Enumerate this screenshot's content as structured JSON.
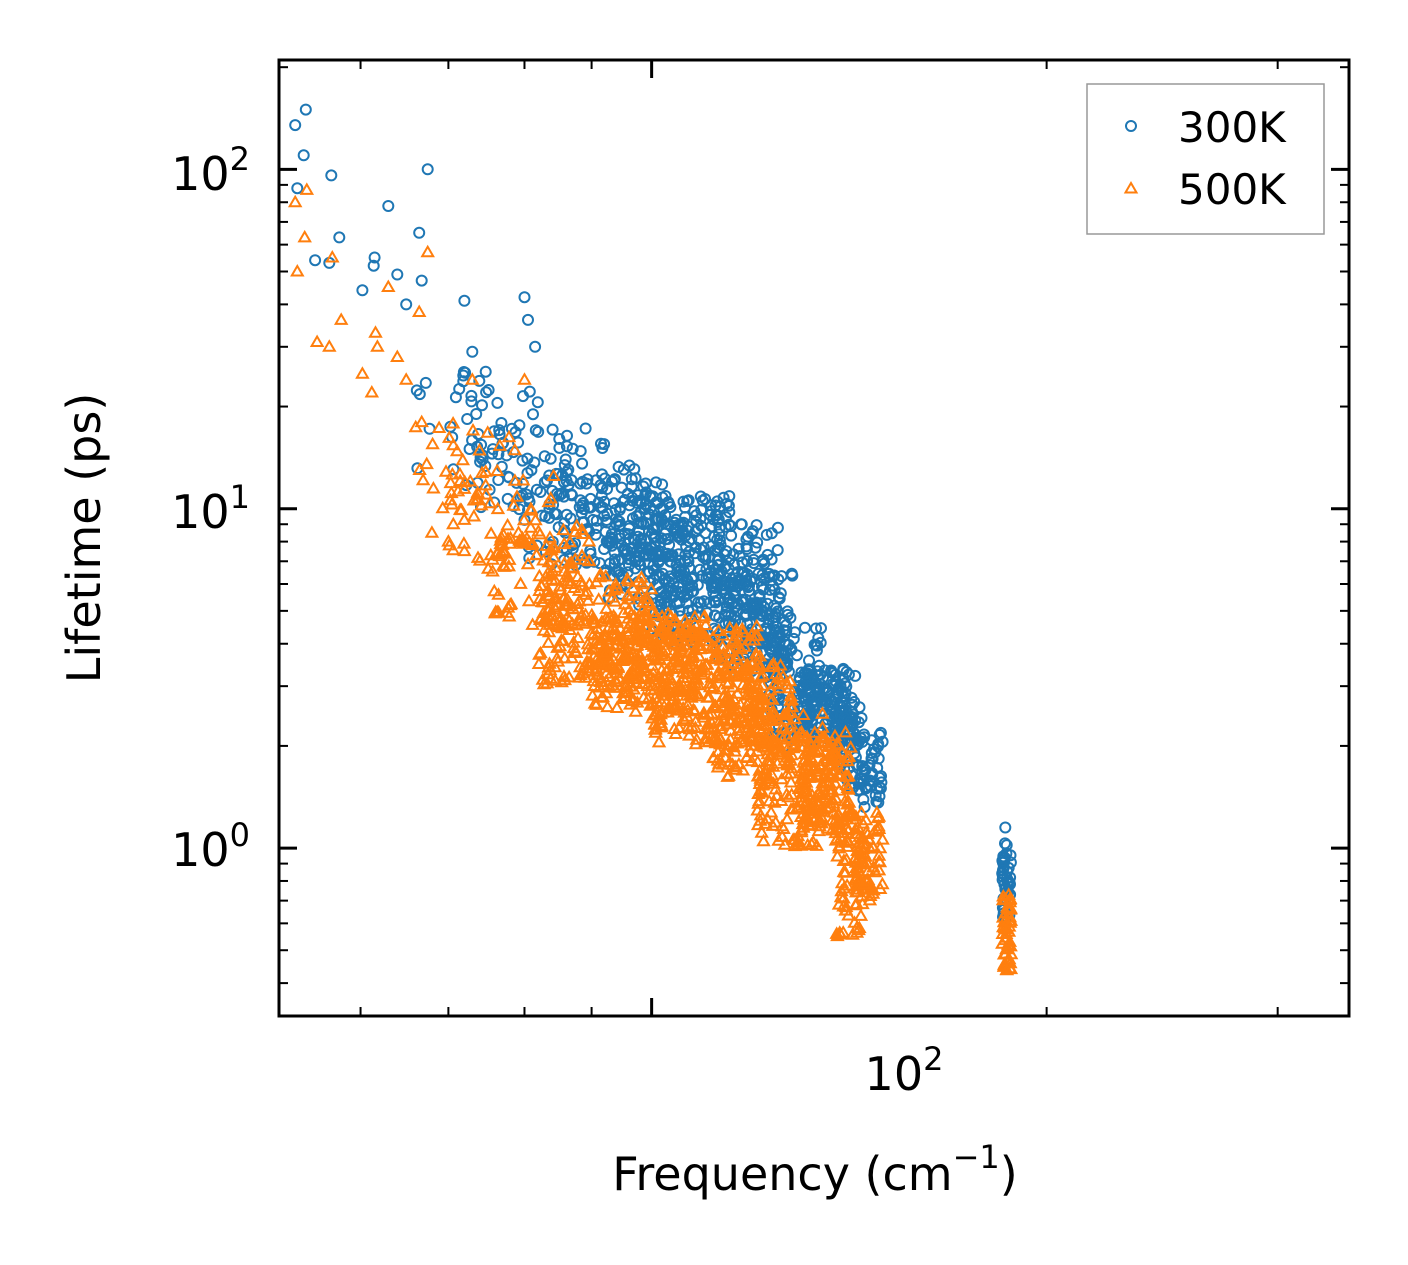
{
  "chart_data": {
    "type": "scatter",
    "xscale": "log",
    "yscale": "log",
    "xlim": [
      52,
      340
    ],
    "ylim": [
      0.32,
      210
    ],
    "xlabel_base": "Frequency (cm",
    "xlabel_sup": "−1",
    "xlabel_close": ")",
    "ylabel": "Lifetime (ps)",
    "x_major_ticks": [
      {
        "value": 100,
        "base": "10",
        "exp": "2"
      }
    ],
    "y_major_ticks": [
      {
        "value": 1,
        "base": "10",
        "exp": "0"
      },
      {
        "value": 10,
        "base": "10",
        "exp": "1"
      },
      {
        "value": 100,
        "base": "10",
        "exp": "2"
      }
    ],
    "legend_position": "top-right",
    "series": [
      {
        "name": "300K",
        "color": "#1f77b4",
        "marker": "circle",
        "anchors": [
          {
            "x": 53.5,
            "y": 135
          },
          {
            "x": 54.5,
            "y": 150
          },
          {
            "x": 54.3,
            "y": 110
          },
          {
            "x": 53.7,
            "y": 88
          },
          {
            "x": 57,
            "y": 96
          },
          {
            "x": 56.8,
            "y": 53
          },
          {
            "x": 55.4,
            "y": 54
          },
          {
            "x": 57.8,
            "y": 63
          },
          {
            "x": 60.2,
            "y": 44
          },
          {
            "x": 61.5,
            "y": 55
          },
          {
            "x": 61.4,
            "y": 52
          },
          {
            "x": 63,
            "y": 78
          },
          {
            "x": 64,
            "y": 49
          },
          {
            "x": 65,
            "y": 40
          },
          {
            "x": 66.5,
            "y": 65
          },
          {
            "x": 67.5,
            "y": 100
          },
          {
            "x": 66.8,
            "y": 47
          },
          {
            "x": 72,
            "y": 41
          },
          {
            "x": 73,
            "y": 29
          },
          {
            "x": 80,
            "y": 42
          },
          {
            "x": 80.5,
            "y": 36
          },
          {
            "x": 81.5,
            "y": 30
          },
          {
            "x": 92,
            "y": 15.5
          },
          {
            "x": 117,
            "y": 9
          },
          {
            "x": 123,
            "y": 6.3
          },
          {
            "x": 186,
            "y": 1.15
          },
          {
            "x": 187,
            "y": 0.8
          }
        ],
        "bands": [
          {
            "x": [
              66,
              82
            ],
            "y": [
              13,
              26
            ],
            "n": 40
          },
          {
            "x": [
              72,
              92
            ],
            "y": [
              9.5,
              18
            ],
            "n": 70
          },
          {
            "x": [
              80,
              102
            ],
            "y": [
              6.8,
              13.5
            ],
            "n": 160
          },
          {
            "x": [
              92,
              115
            ],
            "y": [
              5.2,
              11
            ],
            "n": 220
          },
          {
            "x": [
              100,
              125
            ],
            "y": [
              4,
              9
            ],
            "n": 220
          },
          {
            "x": [
              112,
              128
            ],
            "y": [
              3.2,
              6.5
            ],
            "n": 140
          },
          {
            "x": [
              122,
              135
            ],
            "y": [
              2,
              4.5
            ],
            "n": 130
          },
          {
            "x": [
              130,
              143
            ],
            "y": [
              2,
              3.4
            ],
            "n": 140
          },
          {
            "x": [
              138,
              145
            ],
            "y": [
              1.5,
              2.7
            ],
            "n": 60
          },
          {
            "x": [
              143,
              150
            ],
            "y": [
              1.3,
              2.2
            ],
            "n": 50
          },
          {
            "x": [
              185,
              188
            ],
            "y": [
              0.62,
              1.05
            ],
            "n": 40
          }
        ]
      },
      {
        "name": "500K",
        "color": "#ff7f0e",
        "marker": "triangle",
        "anchors": [
          {
            "x": 53.5,
            "y": 80
          },
          {
            "x": 53.7,
            "y": 50
          },
          {
            "x": 54.6,
            "y": 87
          },
          {
            "x": 54.4,
            "y": 63
          },
          {
            "x": 55.6,
            "y": 31
          },
          {
            "x": 56.8,
            "y": 30
          },
          {
            "x": 57.1,
            "y": 55
          },
          {
            "x": 58,
            "y": 36
          },
          {
            "x": 60.2,
            "y": 25
          },
          {
            "x": 61.2,
            "y": 22
          },
          {
            "x": 61.6,
            "y": 33
          },
          {
            "x": 61.8,
            "y": 30
          },
          {
            "x": 63,
            "y": 45
          },
          {
            "x": 64,
            "y": 28
          },
          {
            "x": 65,
            "y": 24
          },
          {
            "x": 66.5,
            "y": 38
          },
          {
            "x": 67.5,
            "y": 57
          },
          {
            "x": 66.8,
            "y": 18
          },
          {
            "x": 68,
            "y": 8.5
          },
          {
            "x": 70,
            "y": 8
          },
          {
            "x": 73,
            "y": 24
          },
          {
            "x": 80,
            "y": 24
          },
          {
            "x": 72,
            "y": 7.5
          },
          {
            "x": 78,
            "y": 5.2
          }
        ],
        "bands": [
          {
            "x": [
              66,
              80
            ],
            "y": [
              10,
              18
            ],
            "n": 30
          },
          {
            "x": [
              70,
              85
            ],
            "y": [
              7,
              13
            ],
            "n": 50
          },
          {
            "x": [
              75,
              90
            ],
            "y": [
              4.5,
              9
            ],
            "n": 110
          },
          {
            "x": [
              82,
              100
            ],
            "y": [
              3,
              6.5
            ],
            "n": 200
          },
          {
            "x": [
              90,
              110
            ],
            "y": [
              2.5,
              5
            ],
            "n": 240
          },
          {
            "x": [
              100,
              122
            ],
            "y": [
              2,
              4.5
            ],
            "n": 240
          },
          {
            "x": [
              110,
              128
            ],
            "y": [
              1.6,
              3.5
            ],
            "n": 180
          },
          {
            "x": [
              120,
              135
            ],
            "y": [
              1,
              2.5
            ],
            "n": 160
          },
          {
            "x": [
              130,
              142
            ],
            "y": [
              1.1,
              2.2
            ],
            "n": 150
          },
          {
            "x": [
              138,
              145
            ],
            "y": [
              0.55,
              1.3
            ],
            "n": 80
          },
          {
            "x": [
              143,
              150
            ],
            "y": [
              0.7,
              1.3
            ],
            "n": 60
          },
          {
            "x": [
              185,
              188
            ],
            "y": [
              0.43,
              0.75
            ],
            "n": 50
          }
        ]
      }
    ]
  }
}
